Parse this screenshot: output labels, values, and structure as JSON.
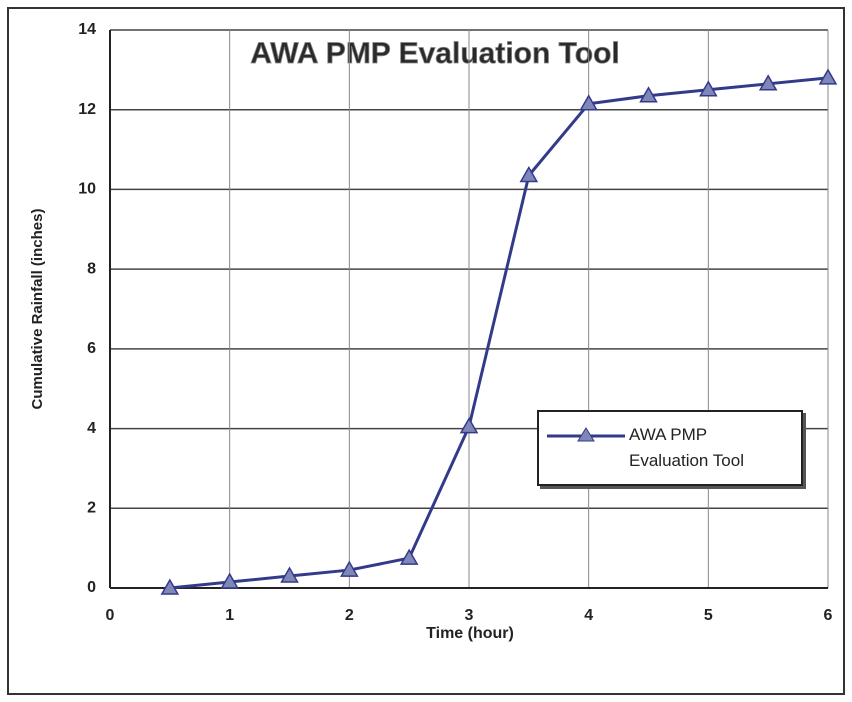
{
  "chart_data": {
    "type": "line",
    "title": "AWA PMP Evaluation Tool",
    "xlabel": "Time (hour)",
    "ylabel": "Cumulative Rainfall (inches)",
    "x": [
      0.5,
      1,
      1.5,
      2,
      2.5,
      3,
      3.5,
      4,
      4.5,
      5,
      5.5,
      6
    ],
    "series": [
      {
        "name": "AWA PMP Evaluation Tool",
        "color": "#343a8a",
        "values": [
          0,
          0.15,
          0.3,
          0.45,
          0.75,
          4.05,
          10.35,
          12.15,
          12.35,
          12.5,
          12.65,
          12.8
        ]
      }
    ],
    "xlim": [
      0,
      6
    ],
    "xticks": [
      0,
      1,
      2,
      3,
      4,
      5,
      6
    ],
    "ylim": [
      0,
      14
    ],
    "yticks": [
      0,
      2,
      4,
      6,
      8,
      10,
      12,
      14
    ],
    "grid": true,
    "legend": "right"
  }
}
